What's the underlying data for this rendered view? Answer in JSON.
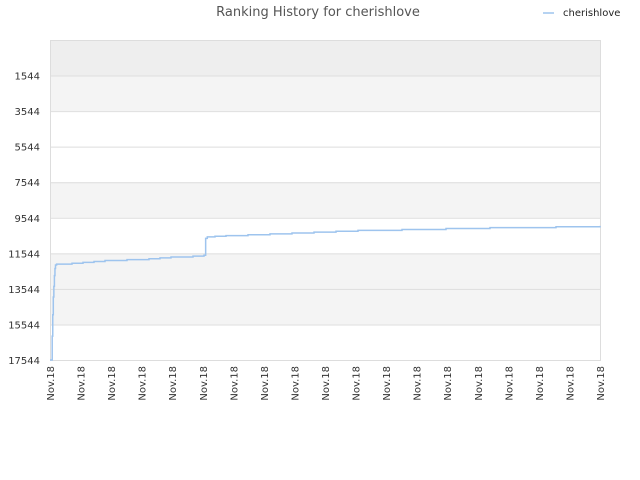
{
  "chart_data": {
    "type": "line",
    "title": "Ranking History for cherishlove",
    "xlabel": "",
    "ylabel": "",
    "y_inverted": true,
    "ylim": [
      17544,
      -456
    ],
    "y_ticks": [
      1544,
      3544,
      5544,
      7544,
      9544,
      11544,
      13544,
      15544,
      17544
    ],
    "x_tick_labels": [
      "Nov.18",
      "Nov.18",
      "Nov.18",
      "Nov.18",
      "Nov.18",
      "Nov.18",
      "Nov.18",
      "Nov.18",
      "Nov.18",
      "Nov.18",
      "Nov.18",
      "Nov.18",
      "Nov.18",
      "Nov.18",
      "Nov.18",
      "Nov.18",
      "Nov.18",
      "Nov.18",
      "Nov.18"
    ],
    "legend_position": "top-right",
    "grid": true,
    "series": [
      {
        "name": "cherishlove",
        "color": "#9ec4ee",
        "x": [
          0.0,
          0.004,
          0.005,
          0.006,
          0.007,
          0.008,
          0.009,
          0.01,
          0.012,
          0.02,
          0.04,
          0.06,
          0.08,
          0.1,
          0.14,
          0.18,
          0.2,
          0.22,
          0.26,
          0.28,
          0.283,
          0.286,
          0.3,
          0.32,
          0.36,
          0.4,
          0.44,
          0.48,
          0.52,
          0.56,
          0.6,
          0.64,
          0.68,
          0.72,
          0.76,
          0.8,
          0.84,
          0.88,
          0.92,
          0.96,
          1.0
        ],
        "values": [
          17544,
          16200,
          15000,
          14000,
          13400,
          12800,
          12400,
          12200,
          12150,
          12150,
          12100,
          12050,
          12000,
          11950,
          11900,
          11850,
          11800,
          11750,
          11700,
          11650,
          10700,
          10620,
          10580,
          10550,
          10500,
          10450,
          10400,
          10350,
          10300,
          10250,
          10250,
          10200,
          10200,
          10150,
          10150,
          10100,
          10100,
          10100,
          10050,
          10050,
          10000
        ]
      }
    ]
  }
}
